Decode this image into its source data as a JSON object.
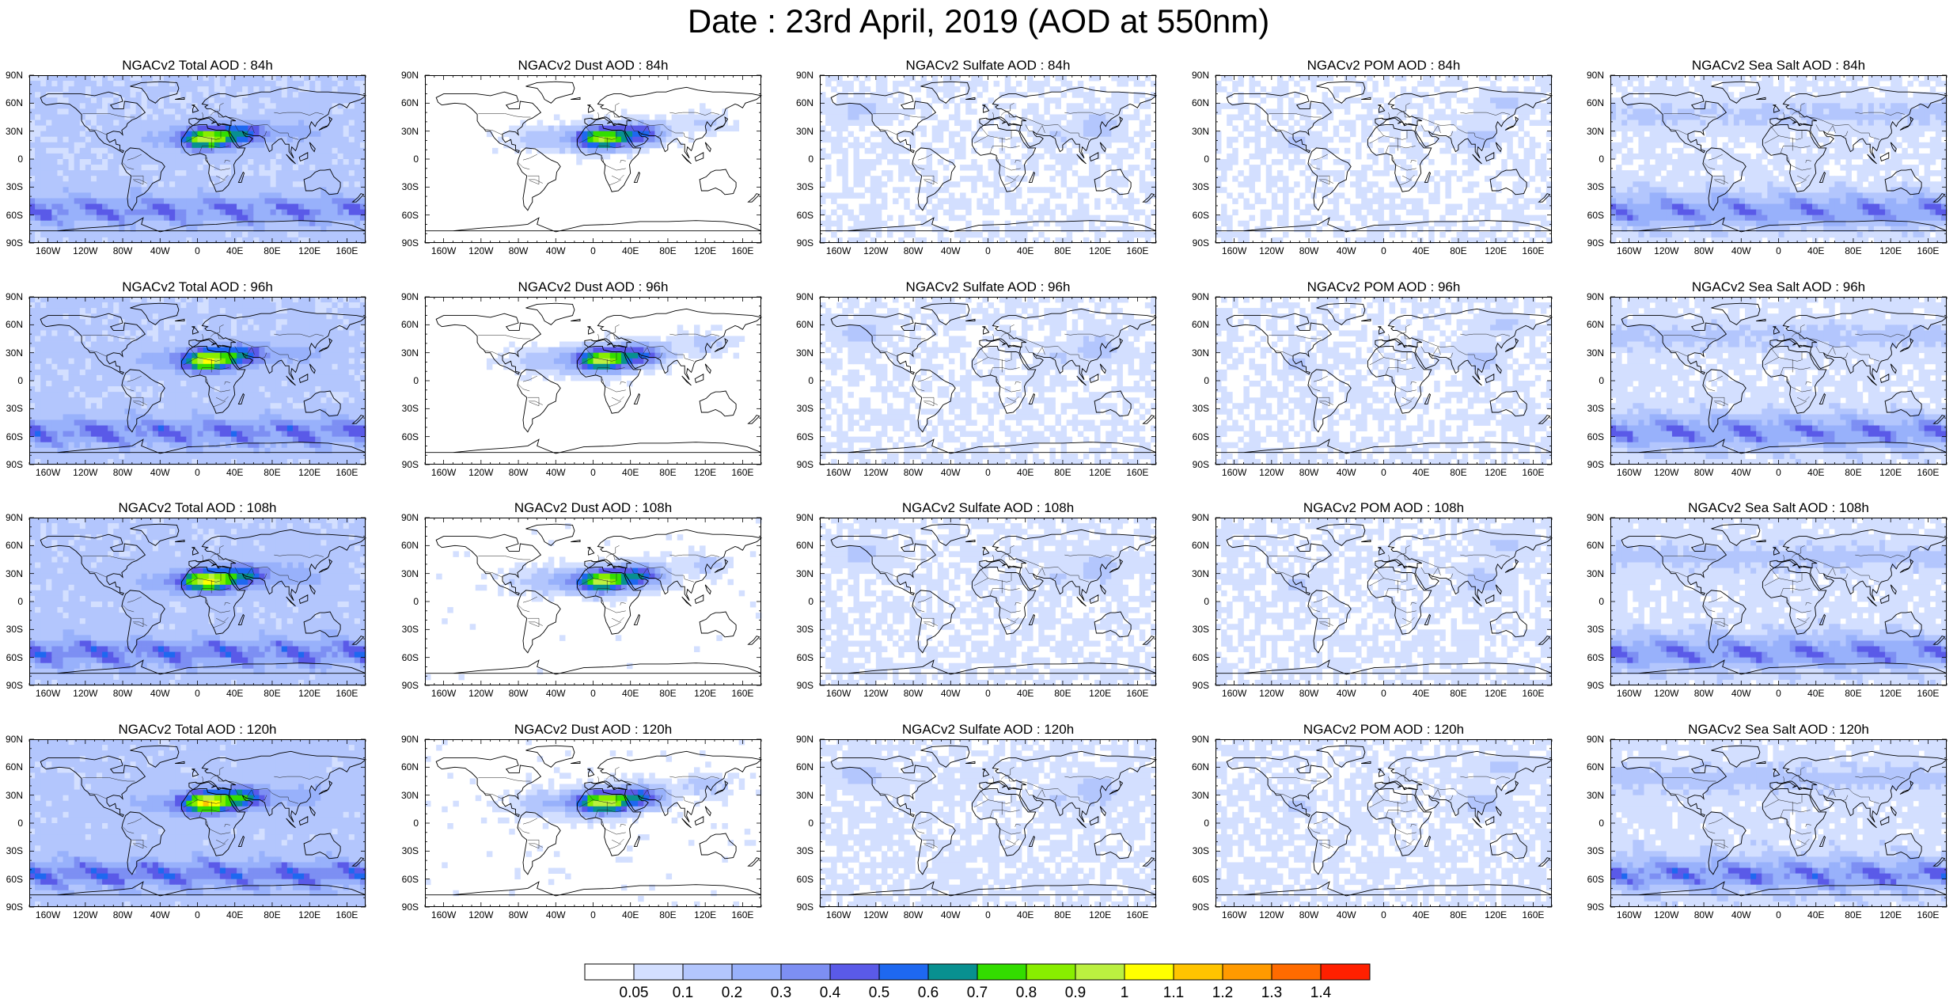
{
  "title": "Date : 23rd April, 2019 (AOD at 550nm)",
  "lat_labels": [
    "90N",
    "60N",
    "30N",
    "0",
    "30S",
    "60S",
    "90S"
  ],
  "lon_labels": [
    "160W",
    "120W",
    "80W",
    "40W",
    "0",
    "40E",
    "80E",
    "120E",
    "160E"
  ],
  "rows": [
    {
      "forecast_hour": "84h",
      "panels": [
        {
          "title": "NGACv2 Total AOD : 84h",
          "field": "total"
        },
        {
          "title": "NGACv2 Dust AOD : 84h",
          "field": "dust"
        },
        {
          "title": "NGACv2 Sulfate AOD : 84h",
          "field": "sulfate"
        },
        {
          "title": "NGACv2 POM AOD : 84h",
          "field": "pom"
        },
        {
          "title": "NGACv2 Sea Salt AOD : 84h",
          "field": "seasalt"
        }
      ]
    },
    {
      "forecast_hour": "96h",
      "panels": [
        {
          "title": "NGACv2 Total AOD : 96h",
          "field": "total"
        },
        {
          "title": "NGACv2 Dust AOD : 96h",
          "field": "dust"
        },
        {
          "title": "NGACv2 Sulfate AOD : 96h",
          "field": "sulfate"
        },
        {
          "title": "NGACv2 POM AOD : 96h",
          "field": "pom"
        },
        {
          "title": "NGACv2 Sea Salt AOD : 96h",
          "field": "seasalt"
        }
      ]
    },
    {
      "forecast_hour": "108h",
      "panels": [
        {
          "title": "NGACv2 Total AOD : 108h",
          "field": "total"
        },
        {
          "title": "NGACv2 Dust AOD : 108h",
          "field": "dust"
        },
        {
          "title": "NGACv2 Sulfate AOD : 108h",
          "field": "sulfate"
        },
        {
          "title": "NGACv2 POM AOD : 108h",
          "field": "pom"
        },
        {
          "title": "NGACv2 Sea Salt AOD : 108h",
          "field": "seasalt"
        }
      ]
    },
    {
      "forecast_hour": "120h",
      "panels": [
        {
          "title": "NGACv2 Total AOD : 120h",
          "field": "total"
        },
        {
          "title": "NGACv2 Dust AOD : 120h",
          "field": "dust"
        },
        {
          "title": "NGACv2 Sulfate AOD : 120h",
          "field": "sulfate"
        },
        {
          "title": "NGACv2 POM AOD : 120h",
          "field": "pom"
        },
        {
          "title": "NGACv2 Sea Salt  AOD : 120h",
          "field": "seasalt"
        }
      ]
    }
  ],
  "colorbar": {
    "labels": [
      "0.05",
      "0.1",
      "0.2",
      "0.3",
      "0.4",
      "0.5",
      "0.6",
      "0.7",
      "0.8",
      "0.9",
      "1",
      "1.1",
      "1.2",
      "1.3",
      "1.4"
    ],
    "colors": [
      "#ffffff",
      "#d3dfff",
      "#b3c6fd",
      "#98b1fb",
      "#7d8ff3",
      "#5a5ae8",
      "#1e68f0",
      "#089090",
      "#33dd00",
      "#88ee00",
      "#bbf040",
      "#ffff00",
      "#ffc400",
      "#ff9a00",
      "#ff6b00",
      "#ff2000"
    ]
  }
}
